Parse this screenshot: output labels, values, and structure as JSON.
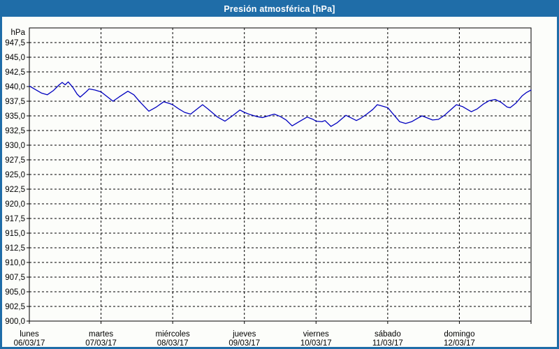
{
  "window": {
    "title": "Presión atmosférica [hPa]"
  },
  "colors": {
    "titlebar_bg": "#1f6da8",
    "titlebar_text": "#ffffff",
    "frame": "#1f6da8",
    "background": "#fcfdfa",
    "grid": "#000000",
    "axis": "#000000",
    "series_line": "#0000bf"
  },
  "chart_data": {
    "type": "line",
    "title": "Presión atmosférica [hPa]",
    "y_unit_label": "hPa",
    "ylim": [
      900,
      950
    ],
    "ytick_step": 2.5,
    "ytick_labels": [
      "900,0",
      "902,5",
      "905,0",
      "907,5",
      "910,0",
      "912,5",
      "915,0",
      "917,5",
      "920,0",
      "922,5",
      "925,0",
      "927,5",
      "930,0",
      "932,5",
      "935,0",
      "937,5",
      "940,0",
      "942,5",
      "945,0",
      "947,5"
    ],
    "grid_style": "dashed",
    "legend": "none",
    "x_days": [
      {
        "name": "lunes",
        "date": "06/03/17"
      },
      {
        "name": "martes",
        "date": "07/03/17"
      },
      {
        "name": "miércoles",
        "date": "08/03/17"
      },
      {
        "name": "jueves",
        "date": "09/03/17"
      },
      {
        "name": "viernes",
        "date": "10/03/17"
      },
      {
        "name": "sábado",
        "date": "11/03/17"
      },
      {
        "name": "domingo",
        "date": "12/03/17"
      }
    ],
    "x_total_hours": 168,
    "series": [
      {
        "name": "Presión atmosférica",
        "unit": "hPa",
        "color": "#0000bf",
        "points": [
          [
            0,
            940.1
          ],
          [
            2,
            939.5
          ],
          [
            4,
            938.9
          ],
          [
            6,
            938.6
          ],
          [
            8,
            939.3
          ],
          [
            10,
            940.3
          ],
          [
            11,
            940.7
          ],
          [
            12,
            940.3
          ],
          [
            13,
            940.8
          ],
          [
            14.5,
            939.9
          ],
          [
            16,
            938.7
          ],
          [
            17,
            938.2
          ],
          [
            19,
            939.1
          ],
          [
            20,
            939.6
          ],
          [
            22,
            939.4
          ],
          [
            24,
            939.1
          ],
          [
            26,
            938.3
          ],
          [
            28,
            937.5
          ],
          [
            30,
            938.2
          ],
          [
            33,
            939.2
          ],
          [
            35,
            938.6
          ],
          [
            37,
            937.4
          ],
          [
            40,
            935.8
          ],
          [
            42.5,
            936.5
          ],
          [
            45,
            937.4
          ],
          [
            47,
            937.1
          ],
          [
            48,
            936.9
          ],
          [
            50,
            936.2
          ],
          [
            52,
            935.6
          ],
          [
            54,
            935.3
          ],
          [
            56,
            936.1
          ],
          [
            58,
            936.9
          ],
          [
            60,
            936.1
          ],
          [
            63,
            934.8
          ],
          [
            65.5,
            934.1
          ],
          [
            68,
            935.0
          ],
          [
            70.5,
            936.0
          ],
          [
            72,
            935.6
          ],
          [
            74,
            935.2
          ],
          [
            76,
            934.9
          ],
          [
            78,
            934.7
          ],
          [
            80,
            935.0
          ],
          [
            82,
            935.3
          ],
          [
            84,
            934.9
          ],
          [
            86,
            934.3
          ],
          [
            88,
            933.3
          ],
          [
            90,
            933.9
          ],
          [
            93,
            934.8
          ],
          [
            95,
            934.4
          ],
          [
            96,
            934.1
          ],
          [
            98,
            934.0
          ],
          [
            99,
            934.2
          ],
          [
            101,
            933.2
          ],
          [
            103,
            933.8
          ],
          [
            106,
            935.1
          ],
          [
            108,
            934.6
          ],
          [
            109.5,
            934.2
          ],
          [
            111,
            934.6
          ],
          [
            113,
            935.3
          ],
          [
            115,
            936.1
          ],
          [
            116.5,
            936.9
          ],
          [
            118,
            936.7
          ],
          [
            120,
            936.4
          ],
          [
            122,
            935.2
          ],
          [
            124,
            934.0
          ],
          [
            126,
            933.7
          ],
          [
            128,
            934.0
          ],
          [
            130,
            934.6
          ],
          [
            131.5,
            935.0
          ],
          [
            133,
            934.7
          ],
          [
            135,
            934.3
          ],
          [
            137,
            934.4
          ],
          [
            139,
            935.1
          ],
          [
            141,
            936.0
          ],
          [
            143,
            936.9
          ],
          [
            145,
            936.6
          ],
          [
            148,
            935.7
          ],
          [
            150,
            936.2
          ],
          [
            152,
            937.0
          ],
          [
            154,
            937.6
          ],
          [
            156,
            937.8
          ],
          [
            158,
            937.3
          ],
          [
            160,
            936.5
          ],
          [
            161,
            936.4
          ],
          [
            163,
            937.2
          ],
          [
            165,
            938.4
          ],
          [
            166.5,
            939.0
          ],
          [
            168,
            939.4
          ]
        ]
      }
    ]
  }
}
